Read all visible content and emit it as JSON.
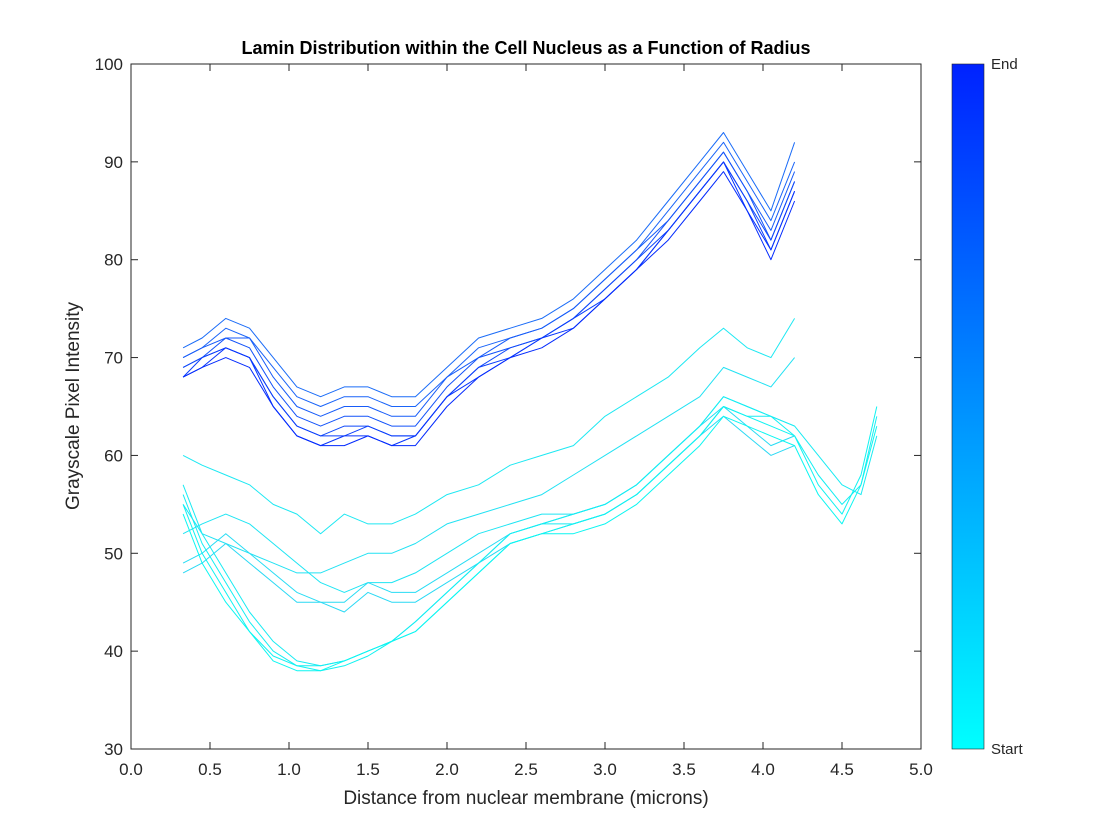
{
  "chart_data": {
    "type": "line",
    "title": "Lamin Distribution within the Cell Nucleus as a Function of Radius",
    "xlabel": "Distance from nuclear membrane (microns)",
    "ylabel": "Grayscale Pixel Intensity",
    "xlim": [
      0,
      5
    ],
    "ylim": [
      30,
      100
    ],
    "xticks": [
      "0.0",
      "0.5",
      "1.0",
      "1.5",
      "2.0",
      "2.5",
      "3.0",
      "3.5",
      "4.0",
      "4.5",
      "5.0"
    ],
    "yticks": [
      "30",
      "40",
      "50",
      "60",
      "70",
      "80",
      "90",
      "100"
    ],
    "grid": false,
    "colorbar": {
      "colors": [
        "#00ffff",
        "#0022ff"
      ],
      "start_label": "Start",
      "end_label": "End"
    },
    "series": [
      {
        "color": "#1de8f2",
        "x": [
          0.33,
          0.45,
          0.6,
          0.75,
          0.9,
          1.05,
          1.2,
          1.35,
          1.5,
          1.65,
          1.8,
          2.0,
          2.2,
          2.4,
          2.6,
          2.8,
          3.0,
          3.2,
          3.4,
          3.6,
          3.75,
          3.9,
          4.05,
          4.2
        ],
        "values": [
          60,
          59,
          58,
          57,
          55,
          54,
          52,
          54,
          53,
          53,
          54,
          56,
          57,
          59,
          60,
          61,
          64,
          66,
          68,
          71,
          73,
          71,
          70,
          74
        ]
      },
      {
        "color": "#22e2f3",
        "x": [
          0.33,
          0.45,
          0.6,
          0.75,
          0.9,
          1.05,
          1.2,
          1.35,
          1.5,
          1.65,
          1.8,
          2.0,
          2.2,
          2.4,
          2.6,
          2.8,
          3.0,
          3.2,
          3.4,
          3.6,
          3.75,
          3.9,
          4.05,
          4.2
        ],
        "values": [
          55,
          52,
          51,
          50,
          49,
          48,
          48,
          49,
          50,
          50,
          51,
          53,
          54,
          55,
          56,
          58,
          60,
          62,
          64,
          66,
          69,
          68,
          67,
          70
        ]
      },
      {
        "color": "#1ee5f3",
        "x": [
          0.33,
          0.45,
          0.6,
          0.75,
          0.9,
          1.05,
          1.2,
          1.35,
          1.5,
          1.65,
          1.8,
          2.0,
          2.2,
          2.4,
          2.6,
          2.8,
          3.0,
          3.2,
          3.4,
          3.6,
          3.75,
          3.9,
          4.05,
          4.2
        ],
        "values": [
          52,
          53,
          54,
          53,
          51,
          49,
          47,
          46,
          47,
          47,
          48,
          50,
          52,
          53,
          54,
          54,
          55,
          57,
          60,
          63,
          66,
          65,
          64,
          63
        ]
      },
      {
        "color": "#28dcf4",
        "x": [
          0.33,
          0.45,
          0.6,
          0.75,
          0.9,
          1.05,
          1.2,
          1.35,
          1.5,
          1.65,
          1.8,
          2.0,
          2.2,
          2.4,
          2.6,
          2.8,
          3.0,
          3.2,
          3.4,
          3.6,
          3.75,
          3.9,
          4.05,
          4.2
        ],
        "values": [
          49,
          50,
          52,
          50,
          48,
          46,
          45,
          45,
          47,
          46,
          46,
          48,
          50,
          52,
          53,
          54,
          55,
          57,
          60,
          63,
          65,
          63,
          61,
          62
        ]
      },
      {
        "color": "#2ad9f4",
        "x": [
          0.33,
          0.45,
          0.6,
          0.75,
          0.9,
          1.05,
          1.2,
          1.35,
          1.5,
          1.65,
          1.8,
          2.0,
          2.2,
          2.4,
          2.6,
          2.8,
          3.0,
          3.2,
          3.4,
          3.6,
          3.75,
          3.9,
          4.05,
          4.2
        ],
        "values": [
          48,
          49,
          51,
          49,
          47,
          45,
          45,
          44,
          46,
          45,
          45,
          47,
          49,
          51,
          52,
          53,
          54,
          56,
          59,
          62,
          64,
          62,
          60,
          61
        ]
      },
      {
        "color": "#19ebf2",
        "x": [
          0.33,
          0.45,
          0.6,
          0.75,
          0.9,
          1.05,
          1.2,
          1.35,
          1.5,
          1.65,
          1.8,
          2.0,
          2.2,
          2.4,
          2.6,
          2.8,
          3.0,
          3.2,
          3.4,
          3.6,
          3.75,
          3.9,
          4.05,
          4.2,
          4.35,
          4.5,
          4.62,
          4.72
        ],
        "values": [
          57,
          52,
          48,
          44,
          41,
          39,
          38.5,
          39,
          40,
          41,
          43,
          46,
          49,
          52,
          53,
          53,
          54,
          56,
          59,
          62,
          65,
          64,
          64,
          63,
          60,
          57,
          56,
          62
        ]
      },
      {
        "color": "#14eef2",
        "x": [
          0.33,
          0.45,
          0.6,
          0.75,
          0.9,
          1.05,
          1.2,
          1.35,
          1.5,
          1.65,
          1.8,
          2.0,
          2.2,
          2.4,
          2.6,
          2.8,
          3.0,
          3.2,
          3.4,
          3.6,
          3.75,
          3.9,
          4.05,
          4.2,
          4.35,
          4.5,
          4.62,
          4.72
        ],
        "values": [
          56,
          51,
          47,
          43,
          40,
          38.5,
          38.5,
          39,
          40,
          41,
          43,
          46,
          49,
          52,
          53,
          54,
          55,
          57,
          60,
          63,
          66,
          65,
          64,
          62,
          58,
          55,
          57,
          64
        ]
      },
      {
        "color": "#10f2f1",
        "x": [
          0.33,
          0.45,
          0.6,
          0.75,
          0.9,
          1.05,
          1.2,
          1.35,
          1.5,
          1.65,
          1.8,
          2.0,
          2.2,
          2.4,
          2.6,
          2.8,
          3.0,
          3.2,
          3.4,
          3.6,
          3.75,
          3.9,
          4.05,
          4.2,
          4.35,
          4.5,
          4.62,
          4.72
        ],
        "values": [
          55,
          50,
          46,
          42,
          39.5,
          38.5,
          38,
          38.5,
          39.5,
          41,
          42,
          45,
          48,
          51,
          52,
          53,
          54,
          56,
          59,
          62,
          65,
          64,
          63,
          62,
          57,
          54,
          58,
          65
        ]
      },
      {
        "color": "#0cf6f1",
        "x": [
          0.33,
          0.45,
          0.6,
          0.75,
          0.9,
          1.05,
          1.2,
          1.35,
          1.5,
          1.65,
          1.8,
          2.0,
          2.2,
          2.4,
          2.6,
          2.8,
          3.0,
          3.2,
          3.4,
          3.6,
          3.75,
          3.9,
          4.05,
          4.2,
          4.35,
          4.5,
          4.62,
          4.72
        ],
        "values": [
          54,
          49,
          45,
          42,
          39,
          38,
          38,
          39,
          40,
          41,
          42,
          45,
          48,
          51,
          52,
          52,
          53,
          55,
          58,
          61,
          64,
          63,
          62,
          61,
          56,
          53,
          57,
          63
        ]
      },
      {
        "color": "#1b6cf7",
        "x": [
          0.33,
          0.45,
          0.6,
          0.75,
          0.9,
          1.05,
          1.2,
          1.35,
          1.5,
          1.65,
          1.8,
          2.0,
          2.2,
          2.4,
          2.6,
          2.8,
          3.0,
          3.2,
          3.4,
          3.6,
          3.75,
          3.9,
          4.05,
          4.2
        ],
        "values": [
          71,
          72,
          74,
          73,
          70,
          67,
          66,
          67,
          67,
          66,
          66,
          69,
          72,
          73,
          74,
          76,
          79,
          82,
          86,
          90,
          93,
          89,
          85,
          92
        ]
      },
      {
        "color": "#1a64f8",
        "x": [
          0.33,
          0.45,
          0.6,
          0.75,
          0.9,
          1.05,
          1.2,
          1.35,
          1.5,
          1.65,
          1.8,
          2.0,
          2.2,
          2.4,
          2.6,
          2.8,
          3.0,
          3.2,
          3.4,
          3.6,
          3.75,
          3.9,
          4.05,
          4.2
        ],
        "values": [
          70,
          71,
          73,
          72,
          69,
          66,
          65,
          66,
          66,
          65,
          65,
          68,
          71,
          72,
          73,
          75,
          78,
          81,
          85,
          89,
          92,
          88,
          84,
          90
        ]
      },
      {
        "color": "#175bf8",
        "x": [
          0.33,
          0.45,
          0.6,
          0.75,
          0.9,
          1.05,
          1.2,
          1.35,
          1.5,
          1.65,
          1.8,
          2.0,
          2.2,
          2.4,
          2.6,
          2.8,
          3.0,
          3.2,
          3.4,
          3.6,
          3.75,
          3.9,
          4.05,
          4.2
        ],
        "values": [
          70,
          71,
          72,
          72,
          68,
          65,
          64,
          65,
          65,
          64,
          64,
          68,
          70,
          72,
          73,
          75,
          78,
          81,
          84,
          88,
          91,
          87,
          83,
          89
        ]
      },
      {
        "color": "#1352f9",
        "x": [
          0.33,
          0.45,
          0.6,
          0.75,
          0.9,
          1.05,
          1.2,
          1.35,
          1.5,
          1.65,
          1.8,
          2.0,
          2.2,
          2.4,
          2.6,
          2.8,
          3.0,
          3.2,
          3.4,
          3.6,
          3.75,
          3.9,
          4.05,
          4.2
        ],
        "values": [
          69,
          70,
          72,
          71,
          67,
          64,
          63,
          64,
          64,
          63,
          63,
          67,
          70,
          71,
          72,
          74,
          77,
          80,
          84,
          88,
          91,
          87,
          82,
          88
        ]
      },
      {
        "color": "#0f48fa",
        "x": [
          0.33,
          0.45,
          0.6,
          0.75,
          0.9,
          1.05,
          1.2,
          1.35,
          1.5,
          1.65,
          1.8,
          2.0,
          2.2,
          2.4,
          2.6,
          2.8,
          3.0,
          3.2,
          3.4,
          3.6,
          3.75,
          3.9,
          4.05,
          4.2
        ],
        "values": [
          69,
          70,
          71,
          70,
          66,
          63,
          62,
          63,
          63,
          62,
          62,
          66,
          69,
          71,
          72,
          74,
          77,
          80,
          83,
          87,
          90,
          86,
          82,
          88
        ]
      },
      {
        "color": "#0b3efb",
        "x": [
          0.33,
          0.45,
          0.6,
          0.75,
          0.9,
          1.05,
          1.2,
          1.35,
          1.5,
          1.65,
          1.8,
          2.0,
          2.2,
          2.4,
          2.6,
          2.8,
          3.0,
          3.2,
          3.4,
          3.6,
          3.75,
          3.9,
          4.05,
          4.2
        ],
        "values": [
          68,
          70,
          71,
          70,
          66,
          63,
          62,
          62,
          63,
          62,
          62,
          66,
          69,
          70,
          72,
          74,
          76,
          79,
          83,
          87,
          90,
          86,
          81,
          87
        ]
      },
      {
        "color": "#0733fc",
        "x": [
          0.33,
          0.45,
          0.6,
          0.75,
          0.9,
          1.05,
          1.2,
          1.35,
          1.5,
          1.65,
          1.8,
          2.0,
          2.2,
          2.4,
          2.6,
          2.8,
          3.0,
          3.2,
          3.4,
          3.6,
          3.75,
          3.9,
          4.05,
          4.2
        ],
        "values": [
          68,
          69,
          71,
          70,
          65,
          62,
          61,
          62,
          62,
          61,
          62,
          66,
          68,
          70,
          72,
          73,
          76,
          79,
          83,
          87,
          90,
          85,
          81,
          87
        ]
      },
      {
        "color": "#032afd",
        "x": [
          0.33,
          0.45,
          0.6,
          0.75,
          0.9,
          1.05,
          1.2,
          1.35,
          1.5,
          1.65,
          1.8,
          2.0,
          2.2,
          2.4,
          2.6,
          2.8,
          3.0,
          3.2,
          3.4,
          3.6,
          3.75,
          3.9,
          4.05,
          4.2
        ],
        "values": [
          68,
          69,
          70,
          69,
          65,
          62,
          61,
          61,
          62,
          61,
          61,
          65,
          68,
          70,
          71,
          73,
          76,
          79,
          82,
          86,
          89,
          85,
          80,
          86
        ]
      }
    ]
  }
}
